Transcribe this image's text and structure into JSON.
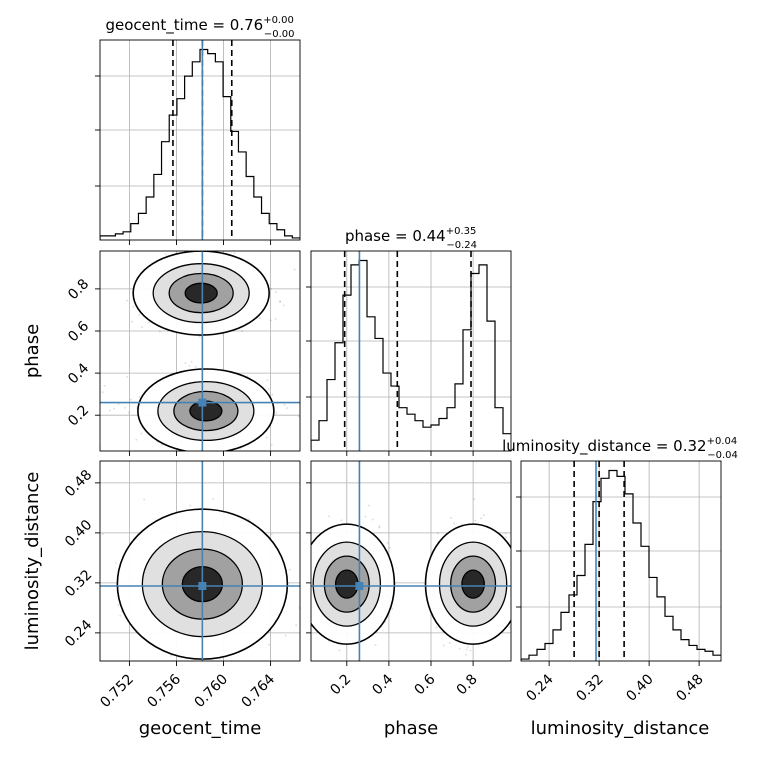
{
  "chart_data": {
    "type": "corner",
    "parameters": [
      "geocent_time",
      "phase",
      "luminosity_distance"
    ],
    "truths": {
      "geocent_time": 0.7582,
      "phase": 0.26,
      "luminosity_distance": 0.315
    },
    "ranges": {
      "geocent_time": [
        0.7495,
        0.7665
      ],
      "phase": [
        0.03,
        0.98
      ],
      "luminosity_distance": [
        0.195,
        0.515
      ]
    },
    "ticks": {
      "geocent_time": [
        "0.752",
        "0.756",
        "0.760",
        "0.764"
      ],
      "phase": [
        "0.2",
        "0.4",
        "0.6",
        "0.8"
      ],
      "luminosity_distance": [
        "0.24",
        "0.32",
        "0.40",
        "0.48"
      ]
    },
    "titles": [
      {
        "param": "geocent_time",
        "main": "geocent_time = 0.76",
        "sup": "+0.00",
        "sub": "−0.00"
      },
      {
        "param": "phase",
        "main": "phase = 0.44",
        "sup": "+0.35",
        "sub": "−0.24"
      },
      {
        "param": "luminosity_distance",
        "main": "luminosity_distance = 0.32",
        "sup": "+0.04",
        "sub": "−0.04"
      }
    ],
    "quantiles": {
      "geocent_time": [
        0.7557,
        0.7582,
        0.7607
      ],
      "phase": [
        0.19,
        0.44,
        0.79
      ],
      "luminosity_distance": [
        0.28,
        0.32,
        0.36
      ]
    },
    "histograms": {
      "geocent_time": [
        2,
        2,
        3,
        4,
        8,
        13,
        21,
        32,
        48,
        61,
        69,
        80,
        87,
        93,
        91,
        87,
        70,
        53,
        43,
        31,
        21,
        13,
        8,
        5,
        2,
        1
      ],
      "phase": [
        5,
        14,
        33,
        50,
        72,
        86,
        88,
        62,
        52,
        36,
        30,
        20,
        17,
        14,
        11,
        12,
        15,
        20,
        31,
        56,
        82,
        86,
        60,
        20,
        8
      ],
      "luminosity_distance": [
        1,
        3,
        6,
        9,
        16,
        25,
        34,
        44,
        60,
        82,
        94,
        98,
        95,
        86,
        71,
        59,
        43,
        33,
        23,
        16,
        11,
        8,
        6,
        5,
        3
      ]
    }
  }
}
